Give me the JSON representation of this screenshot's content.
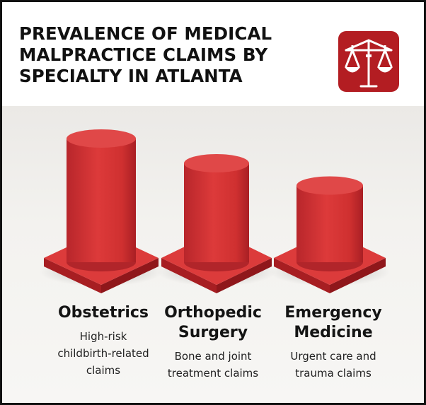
{
  "title_lines": [
    "PREVALENCE OF MEDICAL",
    "MALPRACTICE CLAIMS BY",
    "SPECIALTY IN ATLANTA"
  ],
  "logo_icon": "scales-of-justice-icon",
  "colors": {
    "accent": "#d63a3a",
    "logo_background": "#b31d22",
    "background": "#f3f2ef"
  },
  "chart_data": {
    "type": "bar",
    "title": "PREVALENCE OF MEDICAL MALPRACTICE CLAIMS BY SPECIALTY IN ATLANTA",
    "xlabel": "",
    "ylabel": "",
    "categories": [
      "Obstetrics",
      "Orthopedic Surgery",
      "Emergency Medicine"
    ],
    "category_labels": [
      "Obstetrics",
      "Orthopedic\nSurgery",
      "Emergency\nMedicine"
    ],
    "descriptions": [
      "High-risk\nchildbirth-related\nclaims",
      "Bone and joint\ntreatment claims",
      "Urgent care and\ntrauma claims"
    ],
    "values": [
      100,
      80,
      62
    ],
    "value_note": "relative heights, no numeric axis shown",
    "grid": false,
    "legend": "none"
  }
}
